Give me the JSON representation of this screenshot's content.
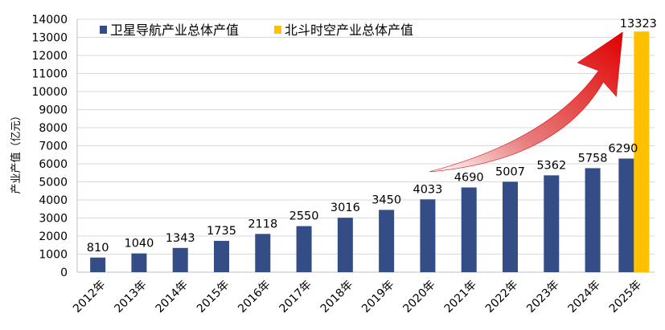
{
  "chart_data": {
    "type": "bar",
    "categories": [
      "2012年",
      "2013年",
      "2014年",
      "2015年",
      "2016年",
      "2017年",
      "2018年",
      "2019年",
      "2020年",
      "2021年",
      "2022年",
      "2023年",
      "2024年",
      "2025年"
    ],
    "series": [
      {
        "name": "卫星导航产业总体产值",
        "color": "#344D87",
        "values": [
          810,
          1040,
          1343,
          1735,
          2118,
          2550,
          3016,
          3450,
          4033,
          4690,
          5007,
          5362,
          5758,
          6290
        ]
      },
      {
        "name": "北斗时空产业总体产值",
        "color": "#FFC000",
        "values": [
          null,
          null,
          null,
          null,
          null,
          null,
          null,
          null,
          null,
          null,
          null,
          null,
          null,
          13323
        ]
      }
    ],
    "ylabel": "产业产值（亿元）",
    "ylim": [
      0,
      14000
    ],
    "yticks": [
      0,
      1000,
      2000,
      3000,
      4000,
      5000,
      6000,
      7000,
      8000,
      9000,
      10000,
      11000,
      12000,
      13000,
      14000
    ],
    "grid": true,
    "legend": "top-left",
    "annotation": {
      "type": "growth-arrow",
      "from": "2020年",
      "to": "2025年",
      "color": "#E02020"
    }
  }
}
